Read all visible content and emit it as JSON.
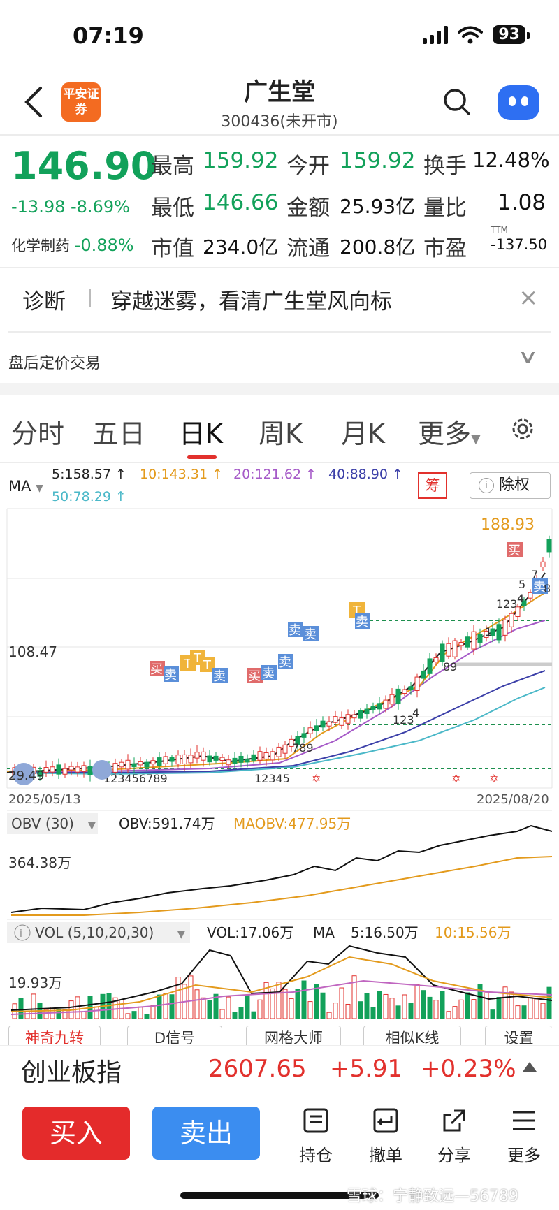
{
  "status_bar": {
    "time": "07:19",
    "battery": "93"
  },
  "nav": {
    "logo_text": "平安证券",
    "title": "广生堂",
    "subtitle": "300436(未开市)"
  },
  "quote": {
    "price": "146.90",
    "change": "-13.98 -8.69%",
    "industry_label": "化学制药",
    "industry_change": "-0.88%",
    "stats": [
      {
        "label": "最高",
        "value": "159.92"
      },
      {
        "label": "今开",
        "value": "159.92"
      },
      {
        "label": "换手",
        "value": "12.48%"
      },
      {
        "label": "最低",
        "value": "146.66"
      },
      {
        "label": "金额",
        "value": "25.93亿"
      },
      {
        "label": "量比",
        "value": "1.08"
      },
      {
        "label": "市值",
        "value": "234.0亿"
      },
      {
        "label": "流通",
        "value": "200.8亿"
      },
      {
        "label": "市盈",
        "value": "-137.50",
        "sup": "TTM"
      }
    ]
  },
  "diagnosis": {
    "label": "诊断",
    "text": "穿越迷雾，看清广生堂风向标",
    "close": "×"
  },
  "after_hours": {
    "label": "盘后定价交易"
  },
  "tabs": [
    "分时",
    "五日",
    "日K",
    "周K",
    "月K",
    "更多"
  ],
  "ma_legend": {
    "label": "MA",
    "items": [
      "5:158.57 ↑",
      "10:143.31 ↑",
      "20:121.62 ↑",
      "40:88.90 ↑",
      "50:78.29 ↑"
    ],
    "chou": "筹",
    "chuquan": "除权"
  },
  "kline": {
    "badge": "神奇九转",
    "high_label": "188.93",
    "mid_label": "108.47",
    "low_label": "29.49",
    "start_date": "2025/05/13",
    "end_date": "2025/08/20",
    "markers_buy": "买",
    "markers_sell": "卖",
    "marker_t": "T",
    "seq_a": "123456789",
    "seq_b": "12345",
    "seq_c": "789",
    "seq_d": "123",
    "seq_e": "4",
    "seq_f": "89",
    "seq_g": "1",
    "seq_h": "5",
    "seq_i": "8",
    "seq_j": "7"
  },
  "obv": {
    "selector": "OBV (30)",
    "obv_value": "OBV:591.74万",
    "maobv_value": "MAOBV:477.95万",
    "axis_label": "364.38万"
  },
  "vol": {
    "selector": "VOL (5,10,20,30)",
    "vol_value": "VOL:17.06万",
    "ma_label": "MA",
    "ma5": "5:16.50万",
    "ma10": "10:15.56万",
    "axis_label": "19.93万"
  },
  "tools": [
    "神奇九转",
    "D信号",
    "网格大师",
    "相似K线",
    "设置"
  ],
  "index_bar": {
    "name": "创业板指",
    "value": "2607.65",
    "change": "+5.91",
    "pct": "+0.23%"
  },
  "actions": {
    "buy": "买入",
    "sell": "卖出",
    "items": [
      "持仓",
      "撤单",
      "分享",
      "更多"
    ]
  },
  "watermark": "雪球：宁静致远—56789",
  "colors": {
    "up": "#e2312d",
    "down": "#12a15a",
    "accent": "#3b8df0"
  }
}
